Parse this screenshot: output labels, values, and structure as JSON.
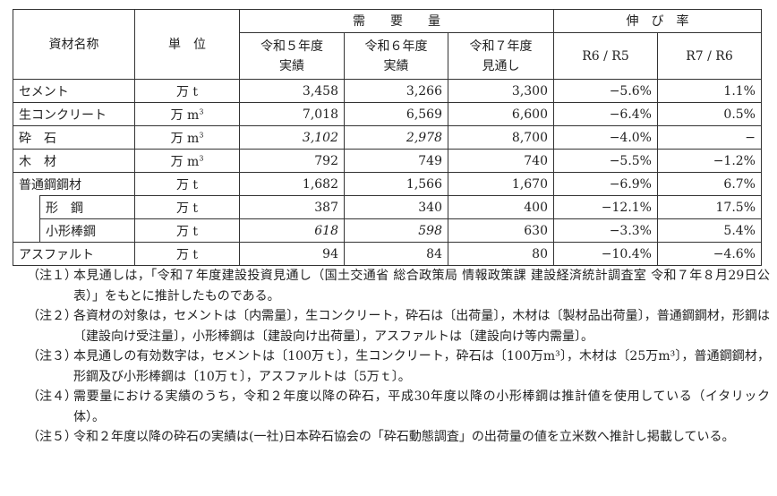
{
  "table": {
    "header": {
      "name": "資材名称",
      "unit": "単　位",
      "demand": "需　　要　　量",
      "growth": "伸　び　率",
      "cols": [
        "令和５年度\n実績",
        "令和６年度\n実績",
        "令和７年度\n見通し",
        "R6 / R5",
        "R7 / R6"
      ]
    },
    "rows": [
      {
        "name": "セメント",
        "unit": "万 t",
        "sup": "",
        "sub": false,
        "r5": "3,458",
        "r6": "3,266",
        "r7": "3,300",
        "g1": "−5.6%",
        "g2": "1.1%",
        "i5": false,
        "i6": false
      },
      {
        "name": "生コンクリート",
        "unit": "万 m",
        "sup": "3",
        "sub": false,
        "r5": "7,018",
        "r6": "6,569",
        "r7": "6,600",
        "g1": "−6.4%",
        "g2": "0.5%",
        "i5": false,
        "i6": false
      },
      {
        "name": "砕　石",
        "unit": "万 m",
        "sup": "3",
        "sub": false,
        "r5": "3,102",
        "r6": "2,978",
        "r7": "8,700",
        "g1": "−4.0%",
        "g2": "−",
        "i5": true,
        "i6": true
      },
      {
        "name": "木　材",
        "unit": "万 m",
        "sup": "3",
        "sub": false,
        "r5": "792",
        "r6": "749",
        "r7": "740",
        "g1": "−5.5%",
        "g2": "−1.2%",
        "i5": false,
        "i6": false
      },
      {
        "name": "普通鋼鋼材",
        "unit": "万 t",
        "sup": "",
        "sub": false,
        "r5": "1,682",
        "r6": "1,566",
        "r7": "1,670",
        "g1": "−6.9%",
        "g2": "6.7%",
        "i5": false,
        "i6": false
      },
      {
        "name": "形　鋼",
        "unit": "万 t",
        "sup": "",
        "sub": true,
        "r5": "387",
        "r6": "340",
        "r7": "400",
        "g1": "−12.1%",
        "g2": "17.5%",
        "i5": false,
        "i6": false
      },
      {
        "name": "小形棒鋼",
        "unit": "万 t",
        "sup": "",
        "sub": true,
        "r5": "618",
        "r6": "598",
        "r7": "630",
        "g1": "−3.3%",
        "g2": "5.4%",
        "i5": true,
        "i6": true
      },
      {
        "name": "アスファルト",
        "unit": "万 t",
        "sup": "",
        "sub": false,
        "r5": "94",
        "r6": "84",
        "r7": "80",
        "g1": "−10.4%",
        "g2": "−4.6%",
        "i5": false,
        "i6": false
      }
    ]
  },
  "notes": [
    {
      "label": "（注１）",
      "text": "本見通しは，「令和７年度建設投資見通し（国土交通省 総合政策局 情報政策課 建設経済統計調査室 令和７年８月29日公表）」をもとに推計したものである。"
    },
    {
      "label": "（注２）",
      "text": "各資材の対象は，セメントは〔内需量〕，生コンクリート，砕石は〔出荷量〕，木材は〔製材品出荷量〕，普通鋼鋼材，形鋼は〔建設向け受注量〕，小形棒鋼は〔建設向け出荷量〕，アスファルトは〔建設向け等内需量〕。"
    },
    {
      "label": "（注３）",
      "text": "本見通しの有効数字は，セメントは〔100万ｔ〕，生コンクリート，砕石は〔100万m³〕，木材は〔25万m³〕，普通鋼鋼材，形鋼及び小形棒鋼は〔10万ｔ〕，アスファルトは〔5万ｔ〕。"
    },
    {
      "label": "（注４）",
      "text": "需要量における実績のうち，令和２年度以降の砕石，平成30年度以降の小形棒鋼は推計値を使用している（イタリック体）。"
    },
    {
      "label": "（注５）",
      "text": "令和２年度以降の砕石の実績は(一社)日本砕石協会の「砕石動態調査」の出荷量の値を立米数へ推計し掲載している。"
    }
  ]
}
